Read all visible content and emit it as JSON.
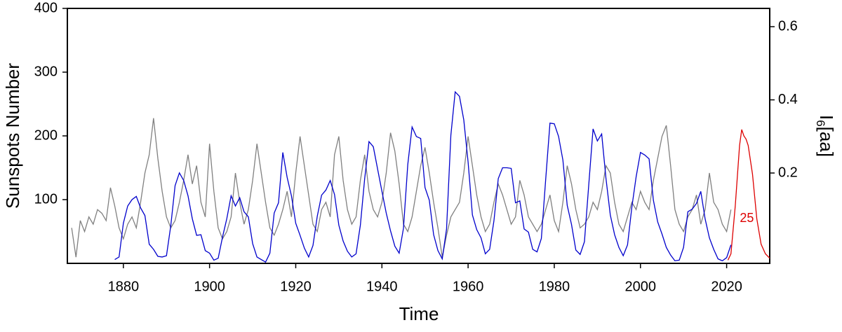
{
  "chart_data": {
    "type": "line",
    "xlabel": "Time",
    "ylabel": "Sunspots Number",
    "ylabel_color": "#0000cc",
    "y2label_parts": [
      "I",
      "6",
      "[aa]"
    ],
    "y2label_color": "#808080",
    "xlim": [
      1867,
      2030
    ],
    "xticks": [
      1880,
      1900,
      1920,
      1940,
      1960,
      1980,
      2000,
      2020
    ],
    "ylim": [
      0,
      400
    ],
    "yticks": [
      100,
      200,
      300,
      400
    ],
    "y2lim": [
      -0.047,
      0.65
    ],
    "y2ticks": [
      0.2,
      0.4,
      0.6
    ],
    "annotation": {
      "text": "25",
      "x": 2024.7,
      "y": 70,
      "color": "#dd0000"
    },
    "series": [
      {
        "color": "#808080",
        "axis": "y2",
        "x": [
          1868,
          1869,
          1870,
          1871,
          1872,
          1873,
          1874,
          1875,
          1876,
          1877,
          1878,
          1879,
          1880,
          1881,
          1882,
          1883,
          1884,
          1885,
          1886,
          1887,
          1888,
          1889,
          1890,
          1891,
          1892,
          1893,
          1894,
          1895,
          1896,
          1897,
          1898,
          1899,
          1900,
          1901,
          1902,
          1903,
          1904,
          1905,
          1906,
          1907,
          1908,
          1909,
          1910,
          1911,
          1912,
          1913,
          1914,
          1915,
          1916,
          1917,
          1918,
          1919,
          1920,
          1921,
          1922,
          1923,
          1924,
          1925,
          1926,
          1927,
          1928,
          1929,
          1930,
          1931,
          1932,
          1933,
          1934,
          1935,
          1936,
          1937,
          1938,
          1939,
          1940,
          1941,
          1942,
          1943,
          1944,
          1945,
          1946,
          1947,
          1948,
          1949,
          1950,
          1951,
          1952,
          1953,
          1954,
          1955,
          1956,
          1957,
          1958,
          1959,
          1960,
          1961,
          1962,
          1963,
          1964,
          1965,
          1966,
          1967,
          1968,
          1969,
          1970,
          1971,
          1972,
          1973,
          1974,
          1975,
          1976,
          1977,
          1978,
          1979,
          1980,
          1981,
          1982,
          1983,
          1984,
          1985,
          1986,
          1987,
          1988,
          1989,
          1990,
          1991,
          1992,
          1993,
          1994,
          1995,
          1996,
          1997,
          1998,
          1999,
          2000,
          2001,
          2002,
          2003,
          2004,
          2005,
          2006,
          2007,
          2008,
          2009,
          2010,
          2011,
          2012,
          2013,
          2014,
          2015,
          2016,
          2017,
          2018,
          2019,
          2020,
          2021
        ],
        "values": [
          0.05,
          -0.03,
          0.07,
          0.04,
          0.08,
          0.06,
          0.1,
          0.09,
          0.07,
          0.16,
          0.11,
          0.05,
          0.02,
          0.06,
          0.08,
          0.05,
          0.12,
          0.2,
          0.25,
          0.35,
          0.24,
          0.15,
          0.08,
          0.05,
          0.07,
          0.12,
          0.18,
          0.25,
          0.17,
          0.22,
          0.12,
          0.08,
          0.28,
          0.15,
          0.05,
          0.02,
          0.04,
          0.08,
          0.2,
          0.12,
          0.06,
          0.1,
          0.18,
          0.28,
          0.2,
          0.12,
          0.05,
          0.03,
          0.06,
          0.1,
          0.15,
          0.08,
          0.2,
          0.3,
          0.22,
          0.14,
          0.06,
          0.04,
          0.1,
          0.12,
          0.08,
          0.25,
          0.3,
          0.18,
          0.1,
          0.06,
          0.08,
          0.18,
          0.25,
          0.15,
          0.1,
          0.08,
          0.12,
          0.2,
          0.31,
          0.26,
          0.17,
          0.06,
          0.04,
          0.08,
          0.15,
          0.22,
          0.27,
          0.2,
          0.12,
          0.05,
          -0.03,
          0.03,
          0.08,
          0.1,
          0.12,
          0.2,
          0.3,
          0.22,
          0.14,
          0.08,
          0.04,
          0.06,
          0.12,
          0.17,
          0.14,
          0.1,
          0.06,
          0.08,
          0.18,
          0.14,
          0.08,
          0.06,
          0.04,
          0.06,
          0.1,
          0.14,
          0.07,
          0.04,
          0.12,
          0.22,
          0.17,
          0.1,
          0.05,
          0.06,
          0.08,
          0.12,
          0.1,
          0.15,
          0.22,
          0.2,
          0.12,
          0.06,
          0.04,
          0.08,
          0.12,
          0.1,
          0.15,
          0.12,
          0.1,
          0.18,
          0.24,
          0.3,
          0.33,
          0.22,
          0.1,
          0.06,
          0.04,
          0.08,
          0.1,
          0.14,
          0.06,
          0.1,
          0.2,
          0.12,
          0.1,
          0.06,
          0.04,
          0.1
        ]
      },
      {
        "color": "#0000cc",
        "x": [
          1878,
          1879,
          1880,
          1881,
          1882,
          1883,
          1884,
          1885,
          1886,
          1887,
          1888,
          1889,
          1890,
          1891,
          1892,
          1893,
          1894,
          1895,
          1896,
          1897,
          1898,
          1899,
          1900,
          1901,
          1902,
          1903,
          1904,
          1905,
          1906,
          1907,
          1908,
          1909,
          1910,
          1911,
          1912,
          1913,
          1914,
          1915,
          1916,
          1917,
          1918,
          1919,
          1920,
          1921,
          1922,
          1923,
          1924,
          1925,
          1926,
          1927,
          1928,
          1929,
          1930,
          1931,
          1932,
          1933,
          1934,
          1935,
          1936,
          1937,
          1938,
          1939,
          1940,
          1941,
          1942,
          1943,
          1944,
          1945,
          1946,
          1947,
          1948,
          1949,
          1950,
          1951,
          1952,
          1953,
          1954,
          1955,
          1956,
          1957,
          1958,
          1959,
          1960,
          1961,
          1962,
          1963,
          1964,
          1965,
          1966,
          1967,
          1968,
          1969,
          1970,
          1971,
          1972,
          1973,
          1974,
          1975,
          1976,
          1977,
          1978,
          1979,
          1980,
          1981,
          1982,
          1983,
          1984,
          1985,
          1986,
          1987,
          1988,
          1989,
          1990,
          1991,
          1992,
          1993,
          1994,
          1995,
          1996,
          1997,
          1998,
          1999,
          2000,
          2001,
          2002,
          2003,
          2004,
          2005,
          2006,
          2007,
          2008,
          2009,
          2010,
          2011,
          2012,
          2013,
          2014,
          2015,
          2016,
          2017,
          2018,
          2019,
          2020,
          2021
        ],
        "values": [
          6,
          10,
          63,
          90,
          100,
          105,
          87,
          75,
          30,
          22,
          11,
          10,
          12,
          59,
          122,
          142,
          130,
          106,
          70,
          44,
          45,
          20,
          16,
          5,
          8,
          41,
          70,
          106,
          90,
          103,
          81,
          73,
          31,
          10,
          6,
          2,
          16,
          79,
          95,
          174,
          135,
          106,
          63,
          44,
          24,
          10,
          28,
          74,
          107,
          115,
          130,
          108,
          60,
          35,
          19,
          10,
          15,
          60,
          133,
          191,
          183,
          148,
          113,
          79,
          51,
          27,
          16,
          55,
          155,
          214,
          199,
          196,
          119,
          99,
          45,
          20,
          7,
          54,
          201,
          269,
          262,
          225,
          159,
          76,
          53,
          40,
          15,
          22,
          67,
          133,
          150,
          150,
          149,
          95,
          98,
          54,
          49,
          22,
          18,
          39,
          131,
          220,
          219,
          199,
          162,
          91,
          61,
          21,
          14,
          34,
          123,
          211,
          192,
          203,
          133,
          76,
          45,
          25,
          12,
          29,
          88,
          136,
          174,
          170,
          164,
          99,
          65,
          46,
          25,
          13,
          4,
          5,
          25,
          81,
          85,
          94,
          113,
          70,
          40,
          22,
          7,
          4,
          9,
          29
        ]
      },
      {
        "color": "#dd0000",
        "x": [
          2020.3,
          2021,
          2022,
          2023,
          2023.5,
          2024,
          2024.5,
          2025,
          2026,
          2027,
          2028,
          2029,
          2030
        ],
        "values": [
          5,
          15,
          90,
          185,
          210,
          200,
          195,
          185,
          140,
          70,
          30,
          15,
          8
        ]
      }
    ]
  }
}
